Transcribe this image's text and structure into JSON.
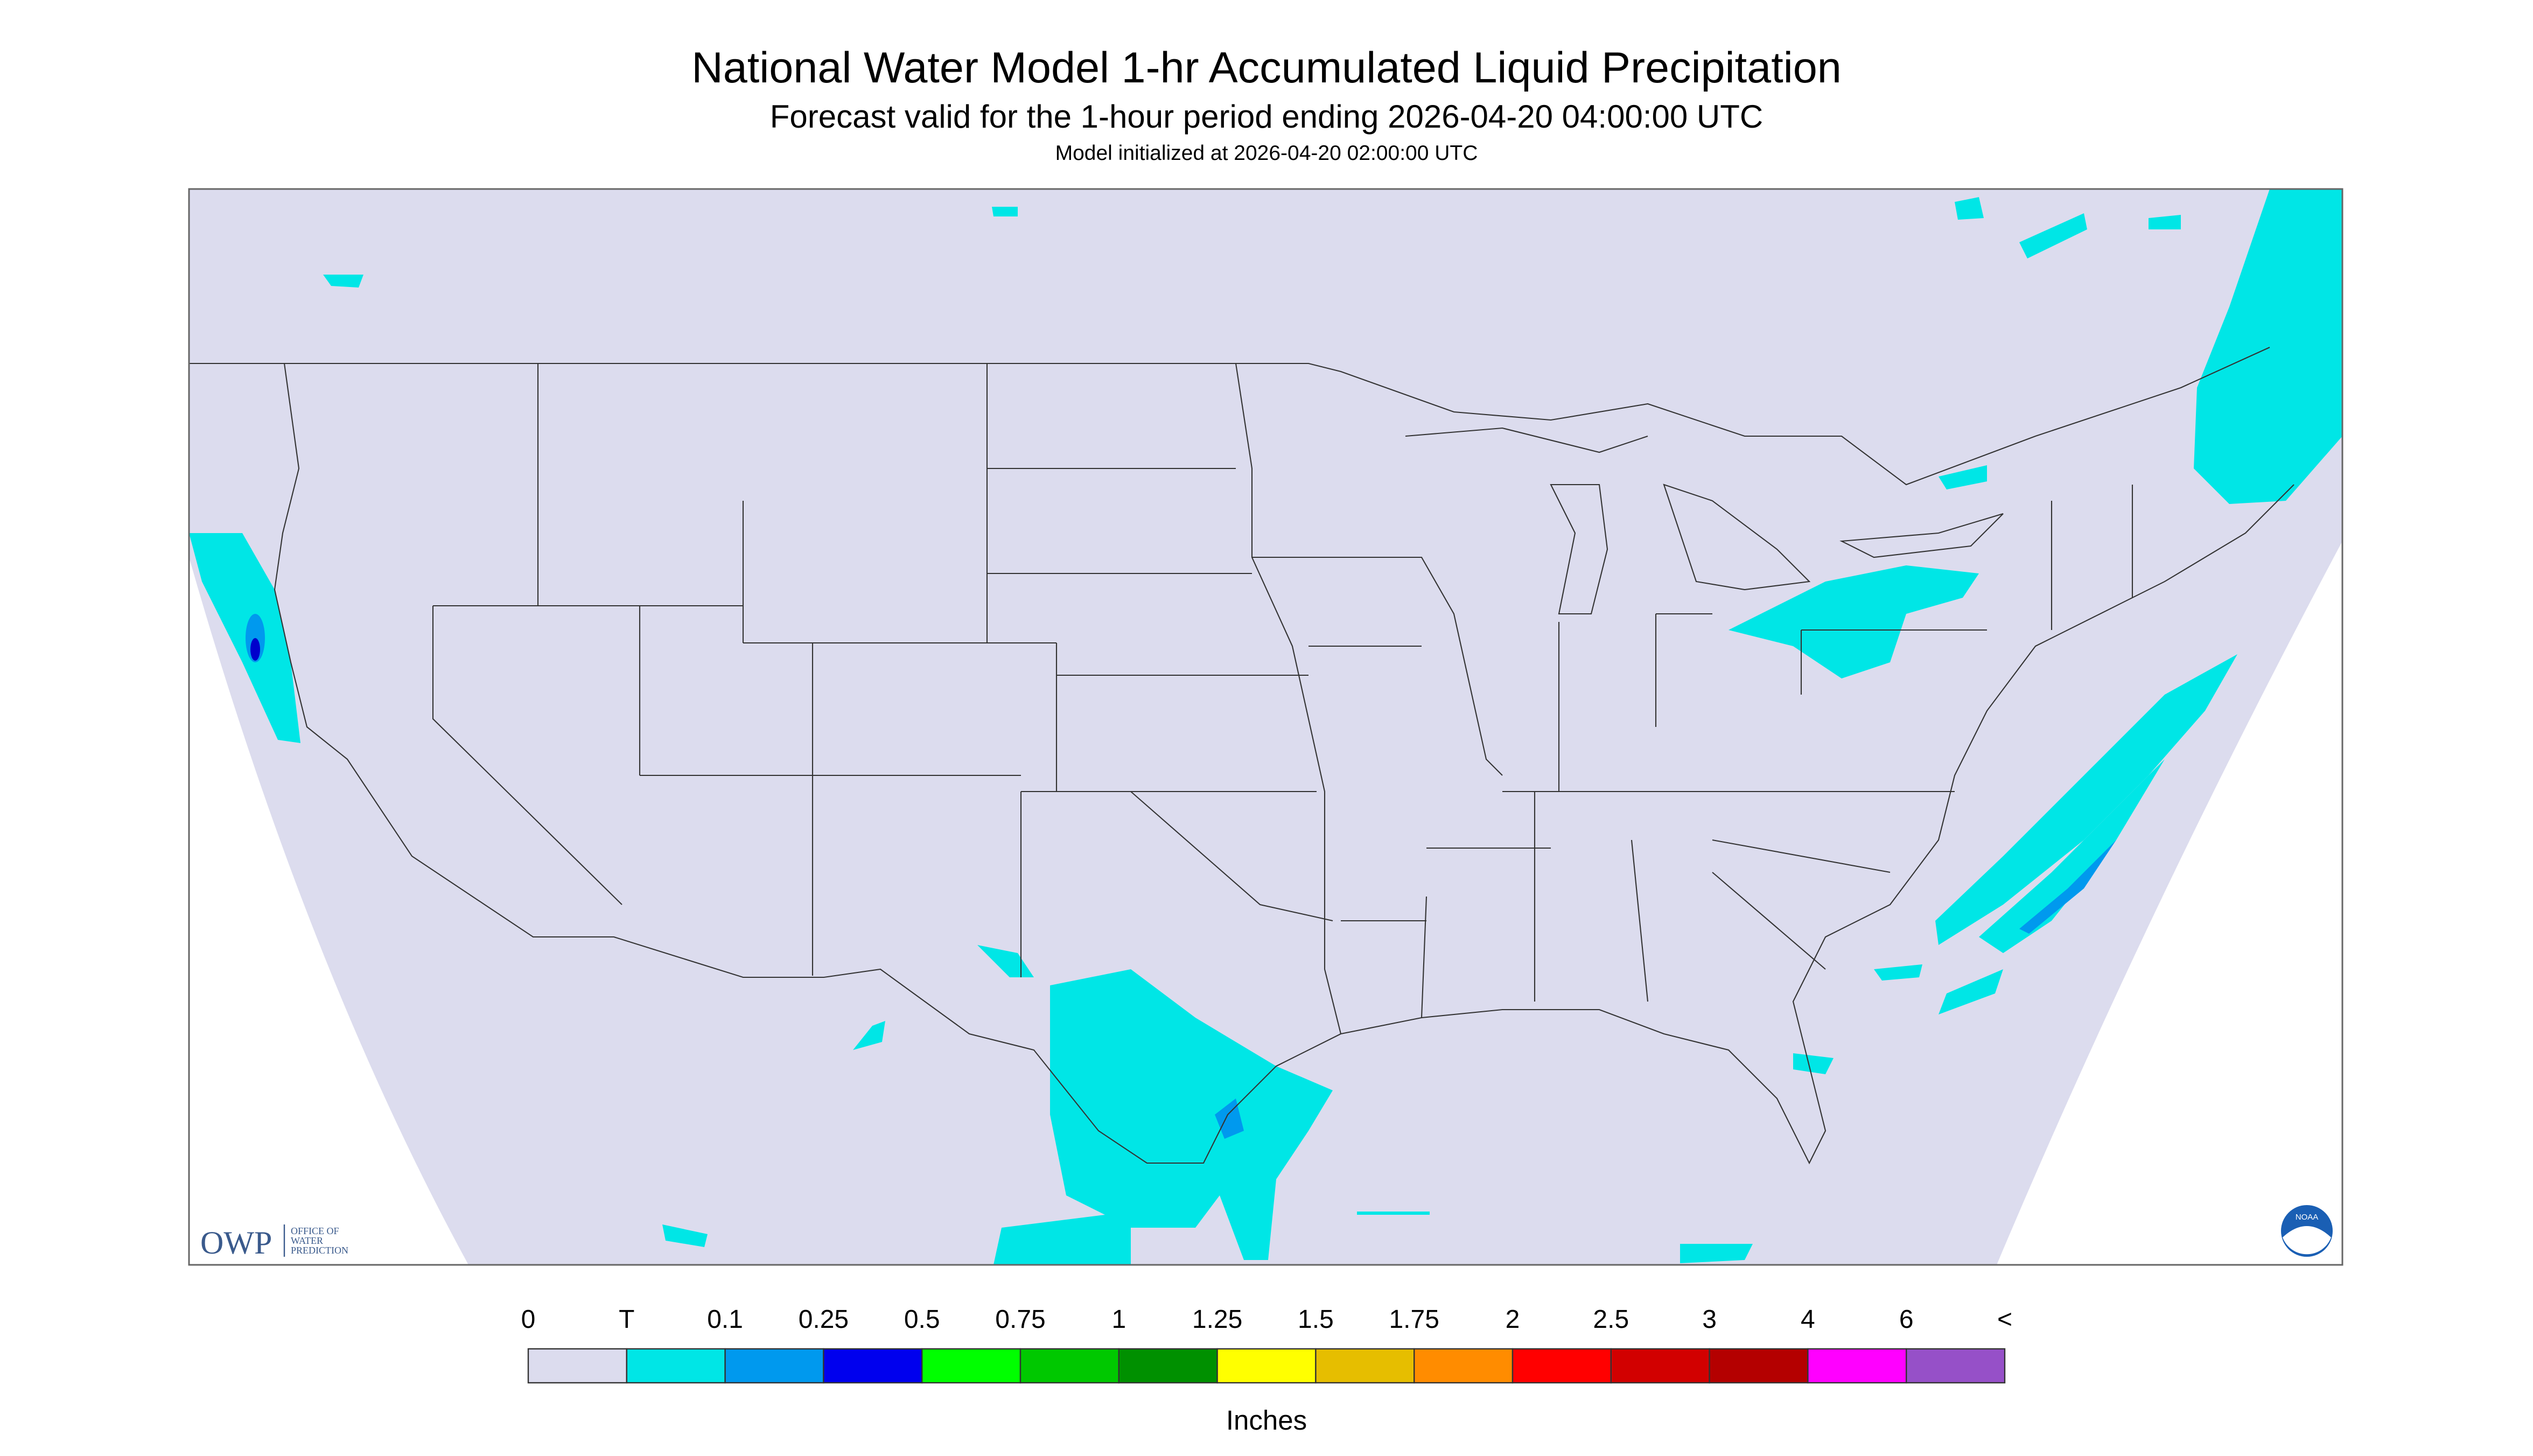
{
  "header": {
    "title": "National Water Model 1-hr Accumulated Liquid Precipitation",
    "subtitle": "Forecast valid for the 1-hour period ending 2026-04-20 04:00:00 UTC",
    "note": "Model initialized at 2026-04-20 02:00:00 UTC"
  },
  "logos": {
    "owp": "OWP",
    "owp_lines": [
      "OFFICE OF",
      "WATER",
      "PREDICTION"
    ],
    "noaa": "NOAA"
  },
  "legend": {
    "labels": [
      "0",
      "T",
      "0.1",
      "0.25",
      "0.5",
      "0.75",
      "1",
      "1.25",
      "1.5",
      "1.75",
      "2",
      "2.5",
      "3",
      "4",
      "6",
      "<"
    ],
    "colors": [
      "#dcdcee",
      "#00e6e6",
      "#0099ee",
      "#0000ee",
      "#00ff00",
      "#00c800",
      "#009000",
      "#ffff00",
      "#e6be00",
      "#ff8c00",
      "#ff0000",
      "#d20000",
      "#b40000",
      "#ff00ff",
      "#9650c8"
    ],
    "unit": "Inches"
  }
}
